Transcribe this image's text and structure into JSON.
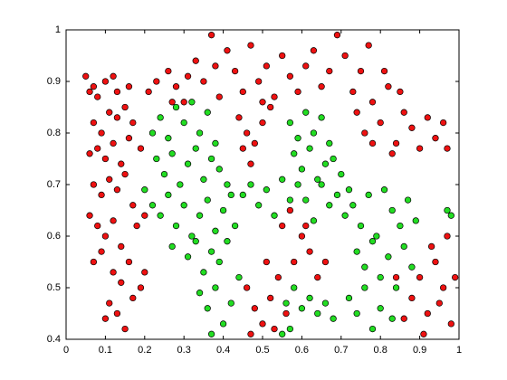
{
  "chart_data": {
    "type": "scatter",
    "xlim": [
      0,
      1
    ],
    "ylim": [
      0.4,
      1
    ],
    "xticks": [
      0,
      0.1,
      0.2,
      0.3,
      0.4,
      0.5,
      0.6,
      0.7,
      0.8,
      0.9,
      1
    ],
    "yticks": [
      0.4,
      0.5,
      0.6,
      0.7,
      0.8,
      0.9,
      1
    ],
    "series": [
      {
        "color": "#ee1111",
        "x": [
          0.05,
          0.06,
          0.07,
          0.08,
          0.1,
          0.12,
          0.13,
          0.16,
          0.07,
          0.09,
          0.11,
          0.13,
          0.15,
          0.17,
          0.06,
          0.08,
          0.1,
          0.12,
          0.14,
          0.16,
          0.19,
          0.07,
          0.09,
          0.11,
          0.13,
          0.15,
          0.17,
          0.06,
          0.08,
          0.1,
          0.12,
          0.14,
          0.18,
          0.2,
          0.07,
          0.09,
          0.12,
          0.14,
          0.16,
          0.19,
          0.11,
          0.13,
          0.15,
          0.17,
          0.1,
          0.2,
          0.21,
          0.23,
          0.26,
          0.28,
          0.31,
          0.33,
          0.35,
          0.37,
          0.38,
          0.41,
          0.43,
          0.45,
          0.47,
          0.49,
          0.51,
          0.53,
          0.55,
          0.57,
          0.59,
          0.61,
          0.63,
          0.65,
          0.67,
          0.69,
          0.71,
          0.73,
          0.75,
          0.77,
          0.27,
          0.39,
          0.3,
          0.44,
          0.46,
          0.48,
          0.5,
          0.47,
          0.52,
          0.45,
          0.5,
          0.74,
          0.76,
          0.78,
          0.8,
          0.82,
          0.84,
          0.86,
          0.88,
          0.9,
          0.92,
          0.94,
          0.96,
          0.97,
          0.81,
          0.85,
          0.78,
          0.83,
          0.46,
          0.48,
          0.5,
          0.52,
          0.54,
          0.56,
          0.58,
          0.6,
          0.62,
          0.64,
          0.55,
          0.57,
          0.53,
          0.47,
          0.61,
          0.51,
          0.66,
          0.86,
          0.88,
          0.9,
          0.92,
          0.94,
          0.96,
          0.98,
          0.93,
          0.97,
          0.99,
          0.91,
          0.95,
          0.84
        ],
        "values": [
          0.91,
          0.88,
          0.89,
          0.87,
          0.9,
          0.91,
          0.88,
          0.89,
          0.82,
          0.8,
          0.84,
          0.83,
          0.85,
          0.82,
          0.76,
          0.77,
          0.75,
          0.78,
          0.74,
          0.79,
          0.77,
          0.7,
          0.68,
          0.71,
          0.69,
          0.72,
          0.66,
          0.64,
          0.62,
          0.6,
          0.63,
          0.58,
          0.62,
          0.64,
          0.55,
          0.57,
          0.53,
          0.51,
          0.55,
          0.5,
          0.47,
          0.45,
          0.42,
          0.48,
          0.44,
          0.53,
          0.88,
          0.9,
          0.92,
          0.89,
          0.91,
          0.94,
          0.9,
          0.99,
          0.93,
          0.96,
          0.92,
          0.88,
          0.97,
          0.9,
          0.93,
          0.87,
          0.95,
          0.91,
          0.88,
          0.93,
          0.96,
          0.89,
          0.92,
          0.99,
          0.95,
          0.88,
          0.92,
          0.97,
          0.86,
          0.87,
          0.86,
          0.83,
          0.8,
          0.78,
          0.82,
          0.74,
          0.85,
          0.77,
          0.86,
          0.84,
          0.8,
          0.86,
          0.82,
          0.89,
          0.78,
          0.84,
          0.81,
          0.77,
          0.83,
          0.79,
          0.82,
          0.77,
          0.92,
          0.88,
          0.78,
          0.76,
          0.5,
          0.46,
          0.43,
          0.48,
          0.52,
          0.45,
          0.55,
          0.6,
          0.57,
          0.52,
          0.62,
          0.65,
          0.42,
          0.41,
          0.62,
          0.55,
          0.55,
          0.44,
          0.48,
          0.52,
          0.45,
          0.55,
          0.5,
          0.43,
          0.58,
          0.6,
          0.52,
          0.41,
          0.47,
          0.52
        ]
      },
      {
        "color": "#22dd22",
        "x": [
          0.22,
          0.24,
          0.26,
          0.28,
          0.3,
          0.32,
          0.34,
          0.36,
          0.38,
          0.23,
          0.25,
          0.27,
          0.29,
          0.31,
          0.33,
          0.35,
          0.37,
          0.39,
          0.41,
          0.2,
          0.22,
          0.24,
          0.26,
          0.28,
          0.3,
          0.32,
          0.34,
          0.36,
          0.38,
          0.4,
          0.42,
          0.27,
          0.31,
          0.33,
          0.35,
          0.37,
          0.39,
          0.41,
          0.43,
          0.34,
          0.36,
          0.38,
          0.4,
          0.42,
          0.37,
          0.44,
          0.45,
          0.47,
          0.49,
          0.51,
          0.53,
          0.55,
          0.57,
          0.57,
          0.59,
          0.61,
          0.63,
          0.65,
          0.67,
          0.58,
          0.6,
          0.62,
          0.64,
          0.66,
          0.68,
          0.7,
          0.72,
          0.59,
          0.61,
          0.63,
          0.65,
          0.67,
          0.69,
          0.71,
          0.73,
          0.75,
          0.77,
          0.79,
          0.81,
          0.83,
          0.85,
          0.87,
          0.89,
          0.97,
          0.98,
          0.74,
          0.76,
          0.78,
          0.8,
          0.82,
          0.84,
          0.86,
          0.88,
          0.72,
          0.74,
          0.76,
          0.8,
          0.83,
          0.78,
          0.56,
          0.58,
          0.6,
          0.62,
          0.64,
          0.66,
          0.68,
          0.55,
          0.57
        ],
        "values": [
          0.8,
          0.83,
          0.79,
          0.85,
          0.82,
          0.86,
          0.8,
          0.84,
          0.78,
          0.75,
          0.72,
          0.76,
          0.7,
          0.74,
          0.77,
          0.71,
          0.75,
          0.73,
          0.7,
          0.69,
          0.66,
          0.64,
          0.68,
          0.62,
          0.66,
          0.6,
          0.64,
          0.67,
          0.61,
          0.65,
          0.68,
          0.58,
          0.56,
          0.59,
          0.53,
          0.57,
          0.55,
          0.59,
          0.62,
          0.49,
          0.46,
          0.5,
          0.43,
          0.47,
          0.41,
          0.52,
          0.68,
          0.7,
          0.66,
          0.69,
          0.64,
          0.71,
          0.67,
          0.82,
          0.79,
          0.84,
          0.8,
          0.83,
          0.78,
          0.76,
          0.73,
          0.77,
          0.71,
          0.74,
          0.75,
          0.72,
          0.69,
          0.7,
          0.67,
          0.63,
          0.7,
          0.66,
          0.68,
          0.64,
          0.66,
          0.62,
          0.68,
          0.6,
          0.69,
          0.65,
          0.62,
          0.67,
          0.63,
          0.65,
          0.64,
          0.57,
          0.54,
          0.59,
          0.52,
          0.56,
          0.5,
          0.58,
          0.54,
          0.48,
          0.45,
          0.5,
          0.46,
          0.44,
          0.42,
          0.47,
          0.5,
          0.46,
          0.48,
          0.45,
          0.47,
          0.44,
          0.41,
          0.42
        ]
      }
    ]
  }
}
